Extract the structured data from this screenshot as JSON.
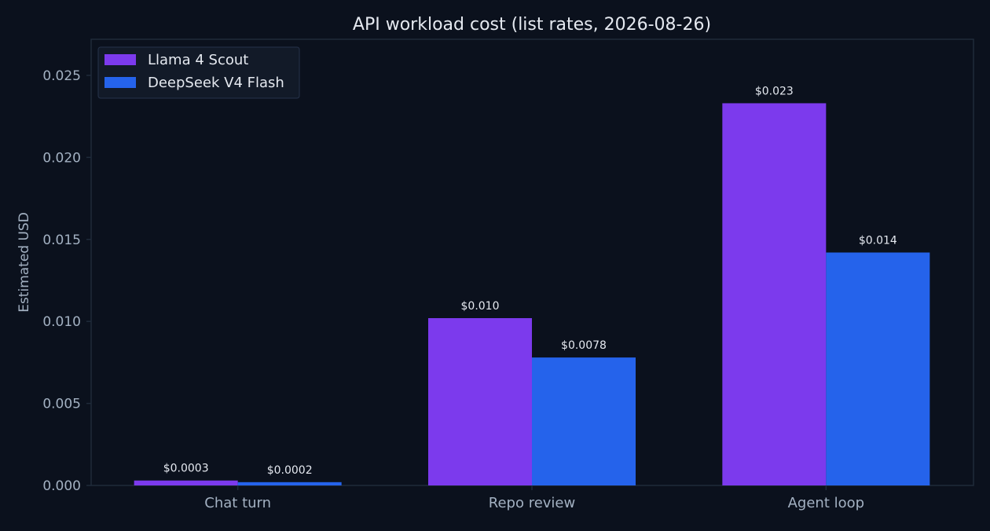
{
  "chart_data": {
    "type": "bar",
    "title": "API workload cost (list rates, 2026-08-26)",
    "xlabel": "",
    "ylabel": "Estimated USD",
    "categories": [
      "Chat turn",
      "Repo review",
      "Agent loop"
    ],
    "series": [
      {
        "name": "Llama 4 Scout",
        "color": "#7c3aed",
        "values": [
          0.0003,
          0.0102,
          0.0233
        ],
        "labels": [
          "$0.0003",
          "$0.010",
          "$0.023"
        ]
      },
      {
        "name": "DeepSeek V4 Flash",
        "color": "#2563eb",
        "values": [
          0.0002,
          0.0078,
          0.0142
        ],
        "labels": [
          "$0.0002",
          "$0.0078",
          "$0.014"
        ]
      }
    ],
    "ylim": [
      0,
      0.0272
    ],
    "yticks": [
      "0.000",
      "0.005",
      "0.010",
      "0.015",
      "0.020",
      "0.025"
    ],
    "ytick_values": [
      0,
      0.005,
      0.01,
      0.015,
      0.02,
      0.025
    ],
    "grid": false,
    "legend_position": "top-left",
    "colors": {
      "background": "#0b111d",
      "axis": "#1f2b3a",
      "tick_text": "#a3b1c2",
      "title_text": "#e5e9f0",
      "label_text": "#e5e9f0"
    }
  }
}
